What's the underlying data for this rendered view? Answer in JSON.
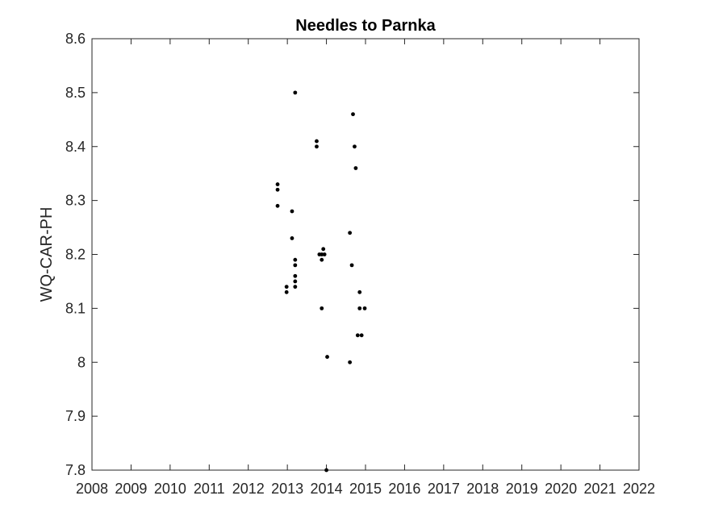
{
  "chart_data": {
    "type": "scatter",
    "title": "Needles to Parnka",
    "xlabel": "",
    "ylabel": "WQ-CAR-PH",
    "xlim": [
      2008,
      2022
    ],
    "ylim": [
      7.8,
      8.6
    ],
    "x_ticks": [
      "2008",
      "2009",
      "2010",
      "2011",
      "2012",
      "2013",
      "2014",
      "2015",
      "2016",
      "2017",
      "2018",
      "2019",
      "2020",
      "2021",
      "2022"
    ],
    "y_ticks": [
      "7.8",
      "7.9",
      "8",
      "8.1",
      "8.2",
      "8.3",
      "8.4",
      "8.5",
      "8.6"
    ],
    "grid": false,
    "marker_color": "#000000",
    "series": [
      {
        "points": [
          {
            "x": 2012.75,
            "y": 8.33
          },
          {
            "x": 2012.75,
            "y": 8.32
          },
          {
            "x": 2012.75,
            "y": 8.29
          },
          {
            "x": 2012.98,
            "y": 8.14
          },
          {
            "x": 2012.98,
            "y": 8.13
          },
          {
            "x": 2013.12,
            "y": 8.28
          },
          {
            "x": 2013.12,
            "y": 8.23
          },
          {
            "x": 2013.2,
            "y": 8.5
          },
          {
            "x": 2013.2,
            "y": 8.19
          },
          {
            "x": 2013.2,
            "y": 8.18
          },
          {
            "x": 2013.2,
            "y": 8.16
          },
          {
            "x": 2013.2,
            "y": 8.15
          },
          {
            "x": 2013.2,
            "y": 8.14
          },
          {
            "x": 2013.75,
            "y": 8.41
          },
          {
            "x": 2013.75,
            "y": 8.4
          },
          {
            "x": 2013.82,
            "y": 8.2
          },
          {
            "x": 2013.88,
            "y": 8.2
          },
          {
            "x": 2013.88,
            "y": 8.19
          },
          {
            "x": 2013.88,
            "y": 8.1
          },
          {
            "x": 2013.92,
            "y": 8.21
          },
          {
            "x": 2013.95,
            "y": 8.2
          },
          {
            "x": 2014.02,
            "y": 8.01
          },
          {
            "x": 2014.0,
            "y": 7.8
          },
          {
            "x": 2014.6,
            "y": 8.24
          },
          {
            "x": 2014.6,
            "y": 8.0
          },
          {
            "x": 2014.65,
            "y": 8.18
          },
          {
            "x": 2014.68,
            "y": 8.46
          },
          {
            "x": 2014.72,
            "y": 8.4
          },
          {
            "x": 2014.75,
            "y": 8.36
          },
          {
            "x": 2014.8,
            "y": 8.05
          },
          {
            "x": 2014.85,
            "y": 8.13
          },
          {
            "x": 2014.85,
            "y": 8.1
          },
          {
            "x": 2014.9,
            "y": 8.05
          },
          {
            "x": 2014.98,
            "y": 8.1
          }
        ]
      }
    ]
  }
}
